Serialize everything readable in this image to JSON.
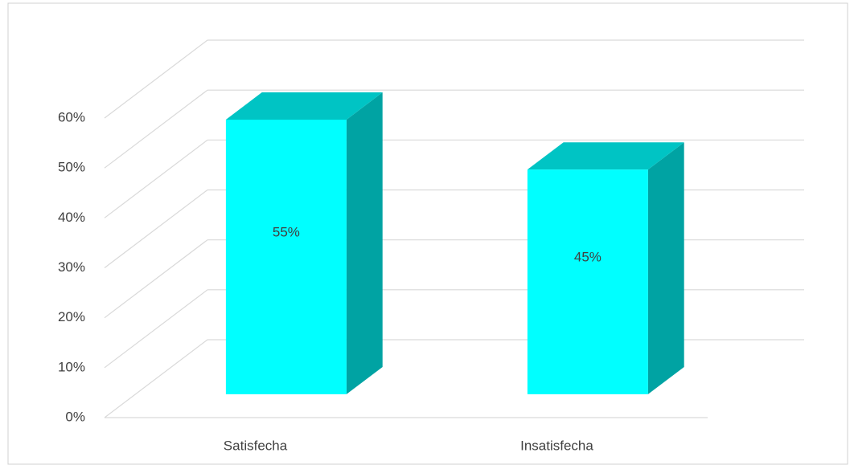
{
  "chart_data": {
    "type": "bar3d",
    "categories": [
      "Satisfecha",
      "Insatisfecha"
    ],
    "values": [
      55,
      45
    ],
    "value_labels": [
      "55%",
      "45%"
    ],
    "color": "#00ffff",
    "ylim": [
      0,
      60
    ],
    "yticks": [
      {
        "value": 0,
        "label": "0%"
      },
      {
        "value": 10,
        "label": "10%"
      },
      {
        "value": 20,
        "label": "20%"
      },
      {
        "value": 30,
        "label": "30%"
      },
      {
        "value": 40,
        "label": "40%"
      },
      {
        "value": 50,
        "label": "50%"
      },
      {
        "value": 60,
        "label": "60%"
      }
    ],
    "grid": true
  }
}
